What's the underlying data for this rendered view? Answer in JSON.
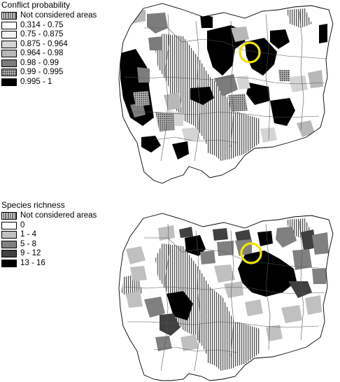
{
  "top_map": {
    "legend_title": "Conflict probability",
    "classes": [
      {
        "label": "Not considered areas",
        "fill": "hatch"
      },
      {
        "label": "0.314 - 0.75",
        "fill": "#ffffff"
      },
      {
        "label": "0.75 - 0.875",
        "fill": "#f2f2f2"
      },
      {
        "label": "0.875 - 0.964",
        "fill": "#d4d4d4"
      },
      {
        "label": "0.964 - 0.98",
        "fill": "#b8b8b8"
      },
      {
        "label": "0.98 - 0.99",
        "fill": "#7c7c7c"
      },
      {
        "label": "0.99 - 0.995",
        "fill": "dots"
      },
      {
        "label": "0.995 - 1",
        "fill": "#000000"
      }
    ],
    "highlight_color": "#f2e400"
  },
  "bottom_map": {
    "legend_title": "Species richness",
    "classes": [
      {
        "label": "Not considered areas",
        "fill": "hatch"
      },
      {
        "label": "0",
        "fill": "#ffffff"
      },
      {
        "label": "1 - 4",
        "fill": "#c0c0c0"
      },
      {
        "label": "5 - 8",
        "fill": "#808080"
      },
      {
        "label": "9 - 12",
        "fill": "#404040"
      },
      {
        "label": "13 - 16",
        "fill": "#000000"
      }
    ],
    "highlight_color": "#f2e400"
  }
}
